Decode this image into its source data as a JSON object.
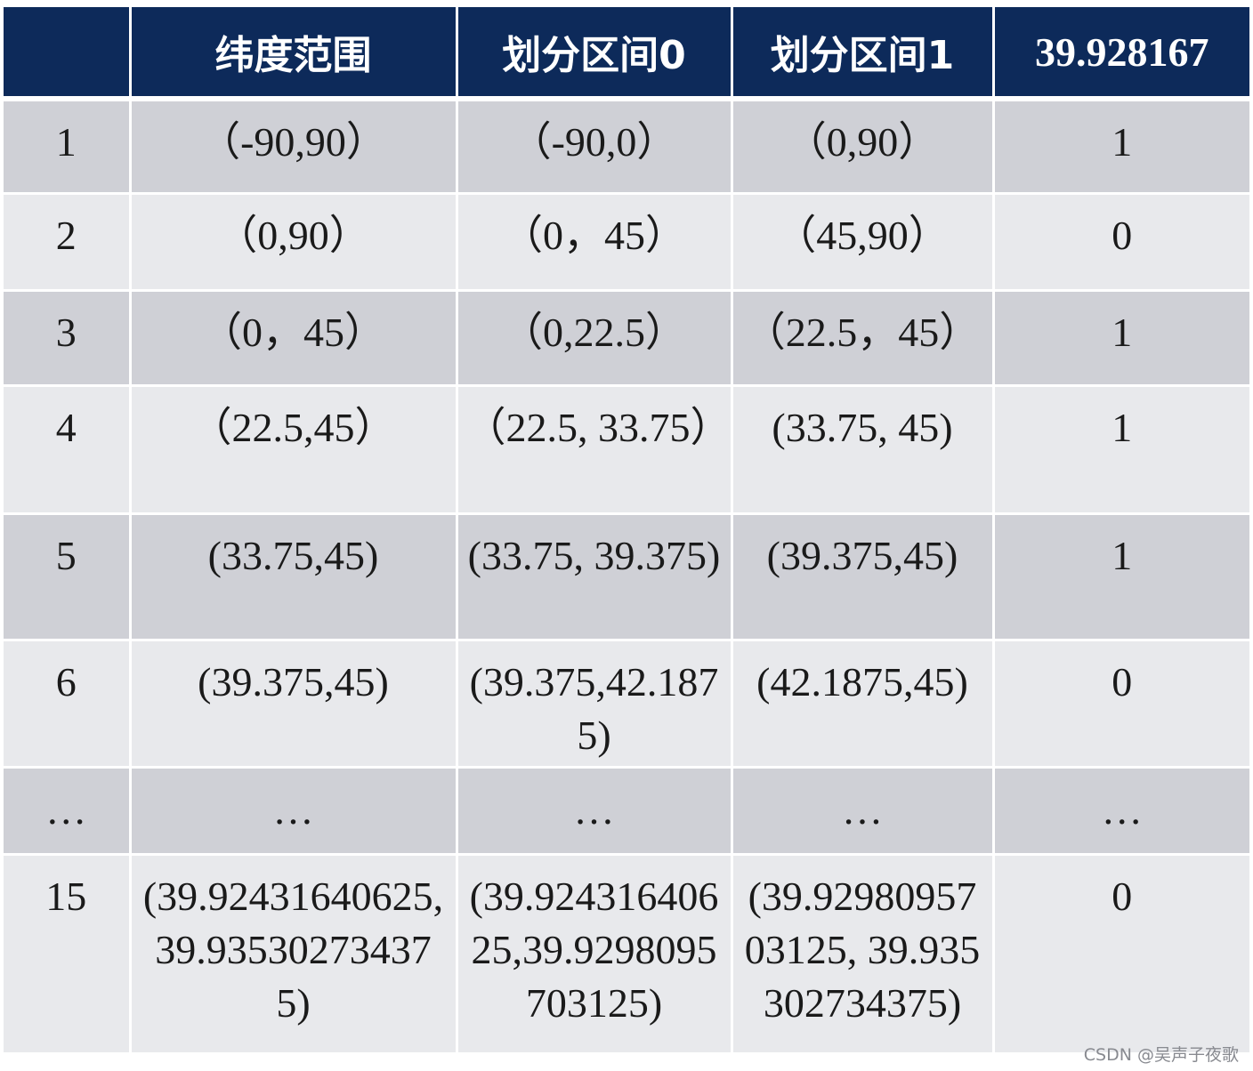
{
  "table": {
    "headers": [
      "",
      "纬度范围",
      "划分区间0",
      "划分区间1",
      "39.928167"
    ],
    "rows": [
      [
        "1",
        "（-90,90）",
        "（-90,0）",
        "（0,90）",
        "1"
      ],
      [
        "2",
        "（0,90）",
        "（0，45）",
        "（45,90）",
        "0"
      ],
      [
        "3",
        "（0，45）",
        "（0,22.5）",
        "（22.5，45）",
        "1"
      ],
      [
        "4",
        "（22.5,45）",
        "（22.5, 33.75）",
        "(33.75, 45)",
        "1"
      ],
      [
        "5",
        "(33.75,45)",
        "(33.75, 39.375)",
        "(39.375,45)",
        "1"
      ],
      [
        "6",
        "(39.375,45)",
        "(39.375,42.1875)",
        "(42.1875,45)",
        "0"
      ],
      [
        "…",
        "…",
        "…",
        "…",
        "…"
      ],
      [
        "15",
        "(39.92431640625,39.935302734375)",
        "(39.92431640625,39.9298095703125)",
        "(39.9298095703125, 39.935302734375)",
        "0"
      ]
    ]
  },
  "watermark": "CSDN @吴声子夜歌",
  "colors": {
    "header_bg": "#0d2a5a",
    "row_dark": "#cfd0d6",
    "row_light": "#e8e9ec"
  }
}
